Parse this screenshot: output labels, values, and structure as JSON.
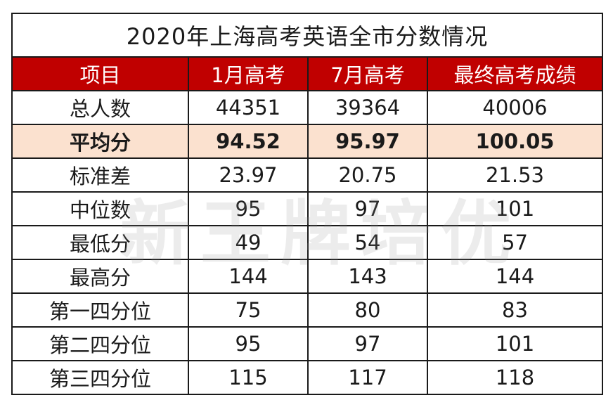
{
  "title": "2020年上海高考英语全市分数情况",
  "headers": [
    "项目",
    "1月高考",
    "7月高考",
    "最终高考成绩"
  ],
  "rows": [
    {
      "label": "总人数",
      "jan": "44351",
      "jul": "39364",
      "final": "40006",
      "highlight": false
    },
    {
      "label": "平均分",
      "jan": "94.52",
      "jul": "95.97",
      "final": "100.05",
      "highlight": true
    },
    {
      "label": "标准差",
      "jan": "23.97",
      "jul": "20.75",
      "final": "21.53",
      "highlight": false
    },
    {
      "label": "中位数",
      "jan": "95",
      "jul": "97",
      "final": "101",
      "highlight": false
    },
    {
      "label": "最低分",
      "jan": "49",
      "jul": "54",
      "final": "57",
      "highlight": false
    },
    {
      "label": "最高分",
      "jan": "144",
      "jul": "143",
      "final": "144",
      "highlight": false
    },
    {
      "label": "第一四分位",
      "jan": "75",
      "jul": "80",
      "final": "83",
      "highlight": false
    },
    {
      "label": "第二四分位",
      "jan": "95",
      "jul": "97",
      "final": "101",
      "highlight": false
    },
    {
      "label": "第三四分位",
      "jan": "115",
      "jul": "117",
      "final": "118",
      "highlight": false
    }
  ],
  "watermark": "新王牌培优",
  "colors": {
    "header_bg": "#c00000",
    "highlight_bg": "#fbe1cf",
    "border": "#1a1a1a"
  }
}
